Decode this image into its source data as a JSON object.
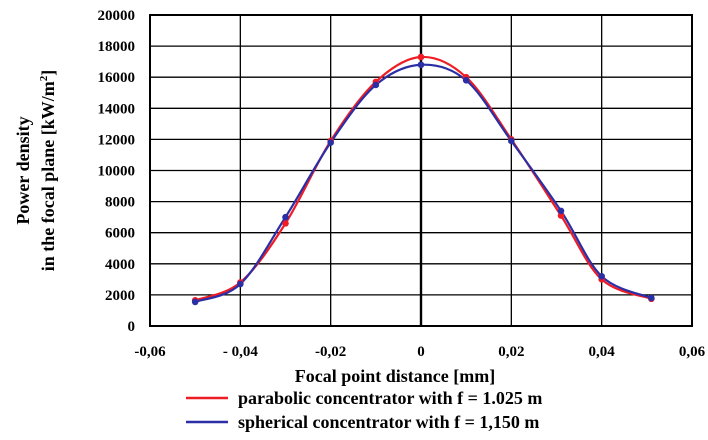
{
  "chart_data": {
    "type": "line",
    "title": "",
    "xlabel": "Focal point distance [mm]",
    "ylabel_lines": [
      "Power density",
      "in the focal plane [kW/m"
    ],
    "ylabel_sup": "2",
    "ylabel_tail": "]",
    "xlim": [
      -0.06,
      0.06
    ],
    "ylim": [
      0,
      20000
    ],
    "x_ticks": [
      -0.06,
      -0.04,
      -0.02,
      0,
      0.02,
      0.04,
      0.06
    ],
    "x_tick_labels": [
      "-0,06",
      "- 0,04",
      "-0,02",
      "0",
      "0,02",
      "0,04",
      "0,06"
    ],
    "y_ticks": [
      0,
      2000,
      4000,
      6000,
      8000,
      10000,
      12000,
      14000,
      16000,
      18000,
      20000
    ],
    "y_tick_labels": [
      "0",
      "2000",
      "4000",
      "6000",
      "8000",
      "10000",
      "12000",
      "14000",
      "16000",
      "18000",
      "20000"
    ],
    "grid": true,
    "legend_position": "bottom",
    "series": [
      {
        "name": "parabolic concentrator with f = 1.025 m",
        "color": "#ee1c25",
        "points": [
          {
            "x": -0.05,
            "y": 1650
          },
          {
            "x": -0.04,
            "y": 2800
          },
          {
            "x": -0.03,
            "y": 6600
          },
          {
            "x": -0.02,
            "y": 11900
          },
          {
            "x": -0.01,
            "y": 15700
          },
          {
            "x": 0,
            "y": 17300
          },
          {
            "x": 0.01,
            "y": 16000
          },
          {
            "x": 0.02,
            "y": 12000
          },
          {
            "x": 0.031,
            "y": 7100
          },
          {
            "x": 0.04,
            "y": 3000
          },
          {
            "x": 0.051,
            "y": 1750
          }
        ]
      },
      {
        "name": "spherical concentrator with f = 1,150 m",
        "color": "#2b2fa6",
        "points": [
          {
            "x": -0.05,
            "y": 1550
          },
          {
            "x": -0.04,
            "y": 2700
          },
          {
            "x": -0.03,
            "y": 7000
          },
          {
            "x": -0.02,
            "y": 11800
          },
          {
            "x": -0.01,
            "y": 15500
          },
          {
            "x": 0,
            "y": 16800
          },
          {
            "x": 0.01,
            "y": 15800
          },
          {
            "x": 0.02,
            "y": 11900
          },
          {
            "x": 0.031,
            "y": 7400
          },
          {
            "x": 0.04,
            "y": 3200
          },
          {
            "x": 0.051,
            "y": 1800
          }
        ]
      }
    ]
  }
}
